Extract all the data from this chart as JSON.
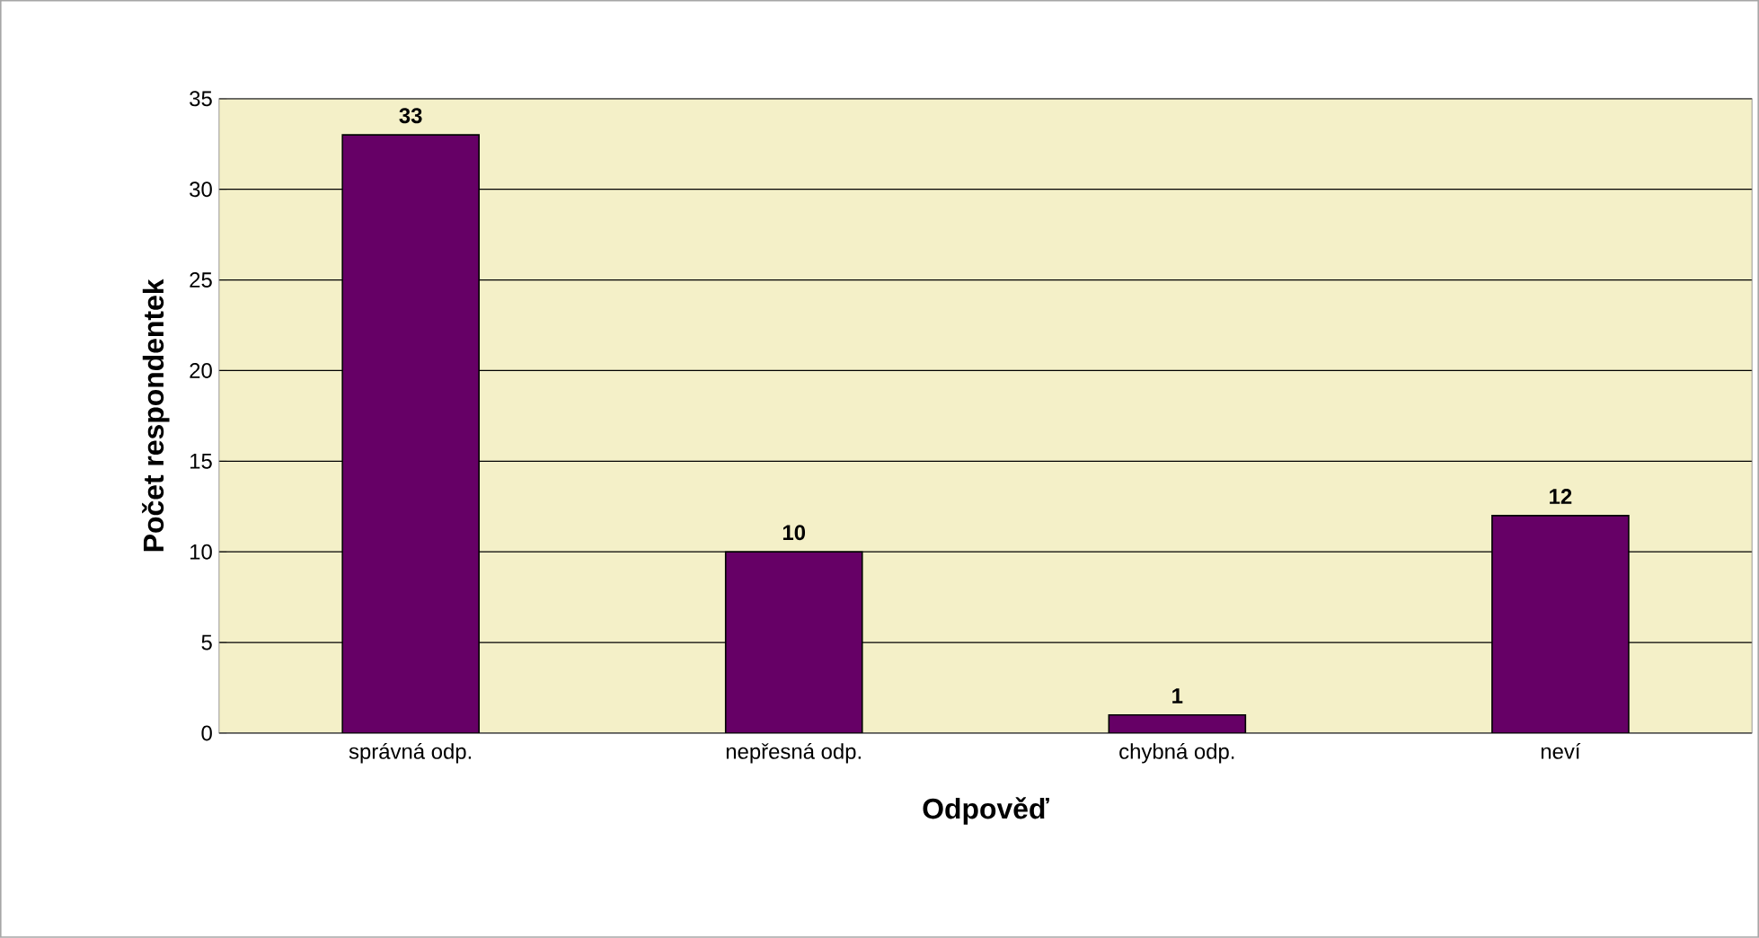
{
  "chart_data": {
    "type": "bar",
    "xlabel": "Odpověď",
    "ylabel": "Počet respondentek",
    "categories": [
      "správná odp.",
      "nepřesná odp.",
      "chybná odp.",
      "neví"
    ],
    "values": [
      33,
      10,
      1,
      12
    ],
    "color": "#660066",
    "ylim": [
      0,
      35
    ],
    "yticks": [
      0,
      5,
      10,
      15,
      20,
      25,
      30,
      35
    ],
    "grid": "y",
    "data_labels": true
  }
}
